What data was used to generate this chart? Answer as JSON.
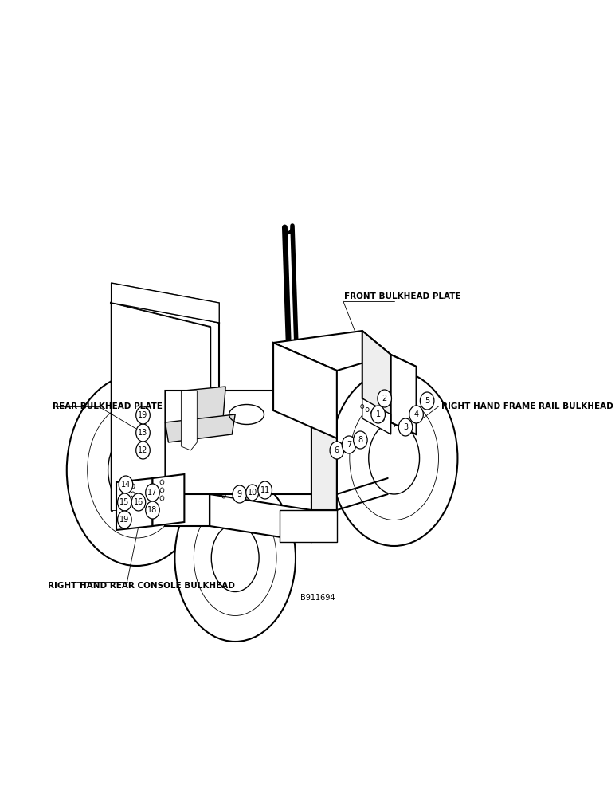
{
  "background_color": "#ffffff",
  "figure_width": 7.72,
  "figure_height": 10.0,
  "dpi": 100,
  "labels": {
    "front_bulkhead": "FRONT BULKHEAD PLATE",
    "right_hand_frame": "RIGHT HAND FRAME RAIL BULKHEAD",
    "rear_bulkhead": "REAR BULKHEAD PLATE",
    "right_hand_rear": "RIGHT HAND REAR CONSOLE BULKHEAD",
    "reference": "B911694"
  },
  "text_color": "#000000",
  "line_color": "#000000",
  "lw_main": 1.5,
  "lw_med": 1.0,
  "lw_thin": 0.6
}
